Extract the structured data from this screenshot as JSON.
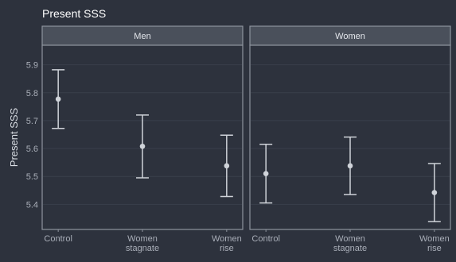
{
  "chart_data": {
    "type": "scatter",
    "title": "Present SSS",
    "ylabel": "Present SSS",
    "xlabel": "",
    "ylim": [
      5.31,
      5.97
    ],
    "yticks": [
      5.4,
      5.5,
      5.6,
      5.7,
      5.8,
      5.9
    ],
    "categories": [
      [
        "Control"
      ],
      [
        "Women",
        "stagnate"
      ],
      [
        "Women",
        "rise"
      ]
    ],
    "grid": true,
    "panels": [
      {
        "name": "Men",
        "points": [
          {
            "x": "Control",
            "y": 5.777,
            "ymin": 5.672,
            "ymax": 5.882
          },
          {
            "x": "Women stagnate",
            "y": 5.608,
            "ymin": 5.495,
            "ymax": 5.72
          },
          {
            "x": "Women rise",
            "y": 5.538,
            "ymin": 5.428,
            "ymax": 5.648
          }
        ]
      },
      {
        "name": "Women",
        "points": [
          {
            "x": "Control",
            "y": 5.51,
            "ymin": 5.405,
            "ymax": 5.615
          },
          {
            "x": "Women stagnate",
            "y": 5.538,
            "ymin": 5.435,
            "ymax": 5.641
          },
          {
            "x": "Women rise",
            "y": 5.442,
            "ymin": 5.338,
            "ymax": 5.546
          }
        ]
      }
    ]
  },
  "colors": {
    "background": "#2d323d",
    "strip": "#4a505b",
    "border": "#8e949e",
    "point": "#cfd3d9"
  }
}
